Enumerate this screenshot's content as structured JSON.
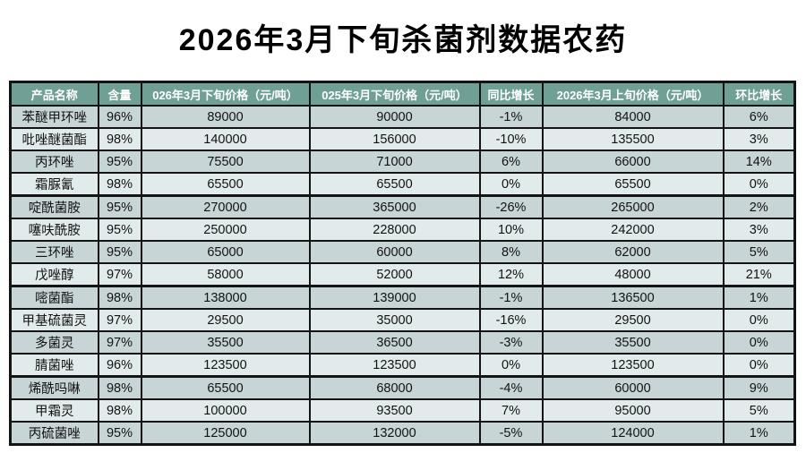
{
  "page": {
    "title": "2026年3月下旬杀菌剂数据农药"
  },
  "chart_data": {
    "type": "table",
    "title": "2026年3月下旬杀菌剂数据农药",
    "columns": [
      "产品名称",
      "含量",
      "026年3月下旬价格（元/吨）",
      "025年3月下旬价格（元/吨）",
      "同比增长",
      "2026年3月上旬价格（元/吨）",
      "环比增长"
    ],
    "rows": [
      [
        "苯醚甲环唑",
        "96%",
        "89000",
        "90000",
        "-1%",
        "84000",
        "6%"
      ],
      [
        "吡唑醚菌酯",
        "98%",
        "140000",
        "156000",
        "-10%",
        "135500",
        "3%"
      ],
      [
        "丙环唑",
        "95%",
        "75500",
        "71000",
        "6%",
        "66000",
        "14%"
      ],
      [
        "霜脲氰",
        "98%",
        "65500",
        "65500",
        "0%",
        "65500",
        "0%"
      ],
      [
        "啶酰菌胺",
        "95%",
        "270000",
        "365000",
        "-26%",
        "265000",
        "2%"
      ],
      [
        "噻呋酰胺",
        "95%",
        "250000",
        "228000",
        "10%",
        "242000",
        "3%"
      ],
      [
        "三环唑",
        "95%",
        "65000",
        "60000",
        "8%",
        "62000",
        "5%"
      ],
      [
        "戊唑醇",
        "97%",
        "58000",
        "52000",
        "12%",
        "48000",
        "21%"
      ],
      [
        "嘧菌酯",
        "98%",
        "138000",
        "139000",
        "-1%",
        "136500",
        "1%"
      ],
      [
        "甲基硫菌灵",
        "97%",
        "29500",
        "35000",
        "-16%",
        "29500",
        "0%"
      ],
      [
        "多菌灵",
        "97%",
        "35500",
        "36500",
        "-3%",
        "35500",
        "0%"
      ],
      [
        "腈菌唑",
        "96%",
        "123500",
        "123500",
        "0%",
        "123500",
        "0%"
      ],
      [
        "烯酰吗啉",
        "98%",
        "65500",
        "68000",
        "-4%",
        "60000",
        "9%"
      ],
      [
        "甲霜灵",
        "98%",
        "100000",
        "93500",
        "7%",
        "95000",
        "5%"
      ],
      [
        "丙硫菌唑",
        "95%",
        "125000",
        "132000",
        "-5%",
        "124000",
        "1%"
      ]
    ]
  },
  "colors": {
    "page_bg": "#ffffff",
    "title_text": "#000000",
    "header_bg": "#6f9f95",
    "header_text": "#ffffff",
    "row_odd": "#c8d5d7",
    "row_even": "#e2ebeb",
    "border": "#141414"
  }
}
